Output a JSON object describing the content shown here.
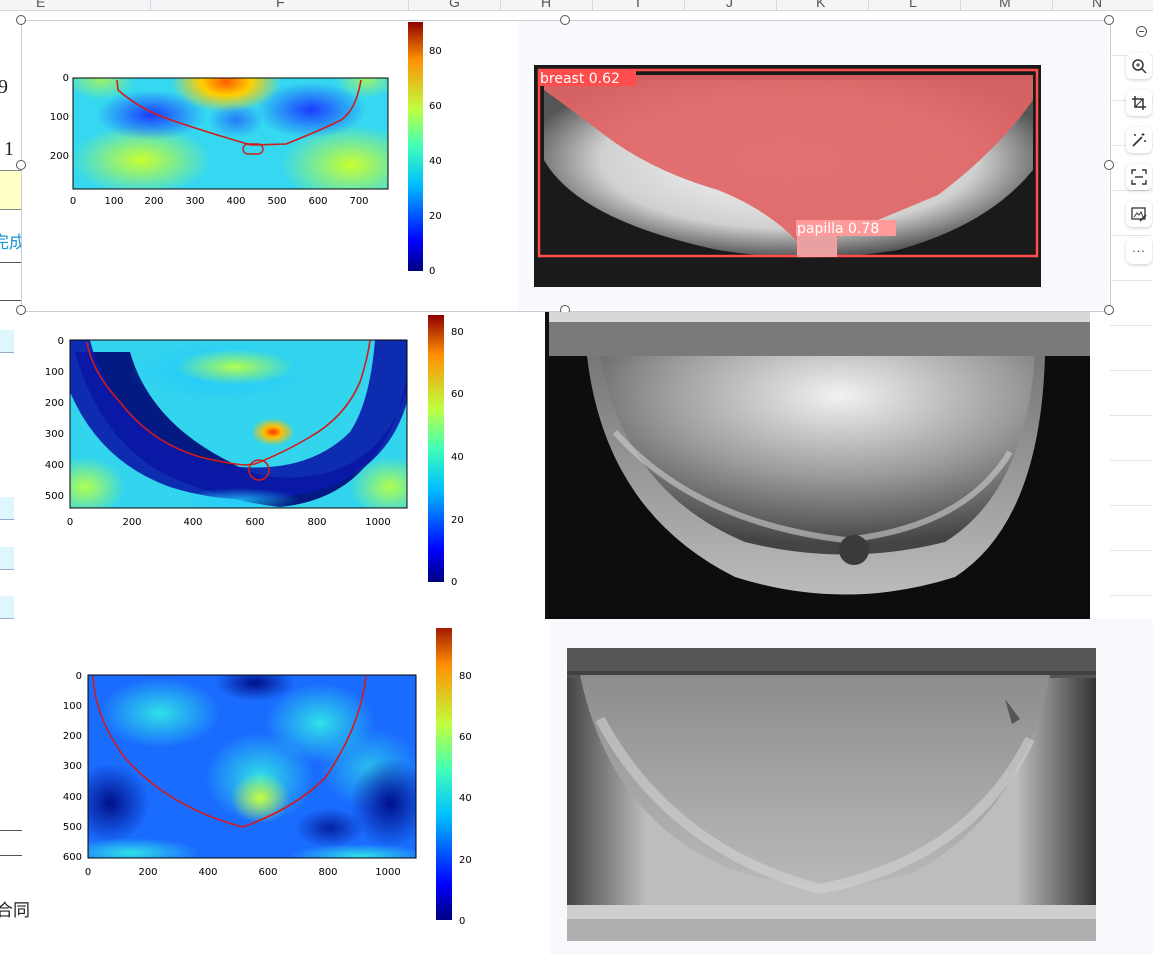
{
  "spreadsheet": {
    "columns": [
      {
        "letter": "E"
      },
      {
        "letter": "F"
      },
      {
        "letter": "G"
      },
      {
        "letter": "H"
      },
      {
        "letter": "I"
      },
      {
        "letter": "J"
      },
      {
        "letter": "K"
      },
      {
        "letter": "L"
      },
      {
        "letter": "M"
      },
      {
        "letter": "N"
      }
    ],
    "left_fragments": [
      "9",
      ". 1",
      "完成",
      "合同"
    ]
  },
  "heatmaps": [
    {
      "x_ticks": [
        "0",
        "100",
        "200",
        "300",
        "400",
        "500",
        "600",
        "700"
      ],
      "y_ticks": [
        "0",
        "100",
        "200"
      ],
      "colorbar_ticks": [
        "0",
        "20",
        "40",
        "60",
        "80"
      ],
      "colormap": "jet"
    },
    {
      "x_ticks": [
        "0",
        "200",
        "400",
        "600",
        "800",
        "1000"
      ],
      "y_ticks": [
        "0",
        "100",
        "200",
        "300",
        "400",
        "500"
      ],
      "colorbar_ticks": [
        "0",
        "20",
        "40",
        "60",
        "80"
      ],
      "colormap": "jet"
    },
    {
      "x_ticks": [
        "0",
        "200",
        "400",
        "600",
        "800",
        "1000"
      ],
      "y_ticks": [
        "0",
        "100",
        "200",
        "300",
        "400",
        "500",
        "600"
      ],
      "colorbar_ticks": [
        "0",
        "20",
        "40",
        "60",
        "80"
      ],
      "colormap": "jet"
    }
  ],
  "detection": {
    "boxes": [
      {
        "label": "breast 0.62",
        "color": "#ff4d4d"
      },
      {
        "label": "papilla 0.78",
        "color": "#ff9b9b"
      }
    ]
  },
  "toolbar": {
    "icons": [
      "minus-icon",
      "zoom-in-icon",
      "crop-icon",
      "magic-wand-icon",
      "scan-icon",
      "image-edit-icon",
      "more-icon"
    ],
    "more_label": "···"
  }
}
